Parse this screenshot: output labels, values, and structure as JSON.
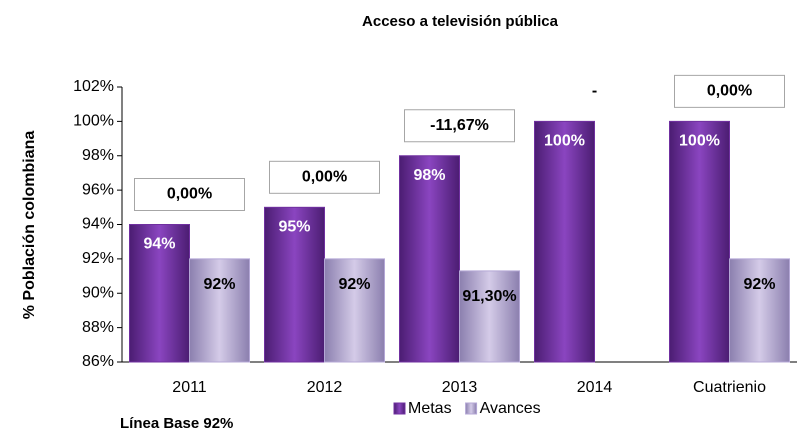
{
  "chart_data": {
    "type": "bar",
    "title": "Acceso a televisión pública",
    "y_label": "% Población colombiana",
    "categories": [
      "2011",
      "2012",
      "2013",
      "2014",
      "Cuatrienio"
    ],
    "series": [
      {
        "name": "Metas",
        "color": "#7030a0",
        "values": [
          94,
          95,
          98,
          100,
          100
        ],
        "value_labels": [
          "94%",
          "95%",
          "98%",
          "100%",
          "100%"
        ]
      },
      {
        "name": "Avances",
        "color": "#b4a7d6",
        "values": [
          92,
          92,
          91.3,
          null,
          92
        ],
        "value_labels": [
          "92%",
          "92%",
          "91,30%",
          null,
          "92%"
        ]
      }
    ],
    "annotations": [
      {
        "text": "0,00%",
        "boxed": true
      },
      {
        "text": "0,00%",
        "boxed": true
      },
      {
        "text": "-11,67%",
        "boxed": true
      },
      {
        "text": "-",
        "boxed": false
      },
      {
        "text": "0,00%",
        "boxed": true
      }
    ],
    "footnote": "Línea Base 92%",
    "ylim": [
      86,
      102
    ],
    "yticks": [
      {
        "value": 86,
        "label": "86%"
      },
      {
        "value": 88,
        "label": "88%"
      },
      {
        "value": 90,
        "label": "90%"
      },
      {
        "value": 92,
        "label": "92%"
      },
      {
        "value": 94,
        "label": "94%"
      },
      {
        "value": 96,
        "label": "96%"
      },
      {
        "value": 98,
        "label": "98%"
      },
      {
        "value": 100,
        "label": "100%"
      },
      {
        "value": 102,
        "label": "102%"
      }
    ],
    "legend": "bottom"
  }
}
